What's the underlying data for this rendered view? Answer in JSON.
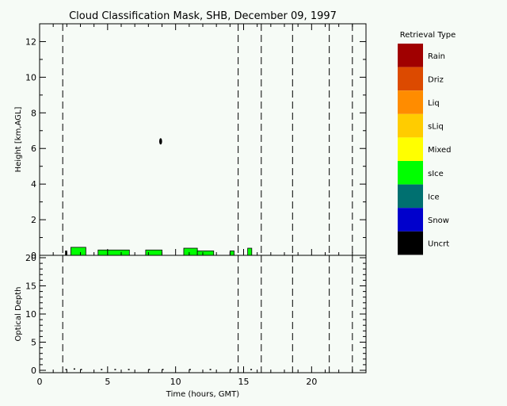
{
  "chart_data": [
    {
      "type": "heatmap",
      "title": "Cloud Classification Mask, SHB, December 09, 1997",
      "ylabel": "Height [km,AGL]",
      "xlim": [
        0,
        24
      ],
      "ylim": [
        0,
        13
      ],
      "xticks": [
        0,
        5,
        10,
        15,
        20
      ],
      "yticks": [
        0,
        2,
        4,
        6,
        8,
        10,
        12
      ],
      "grid": false,
      "dashed_time_markers": [
        1.7,
        14.6,
        16.3,
        18.6,
        21.3,
        23.0
      ],
      "legend": {
        "title": "Retrieval Type",
        "placement": "right",
        "items": [
          {
            "label": "Rain",
            "color": "#a00000"
          },
          {
            "label": "Driz",
            "color": "#dc4a00"
          },
          {
            "label": "Liq",
            "color": "#ff8c00"
          },
          {
            "label": "sLiq",
            "color": "#ffcc00"
          },
          {
            "label": "Mixed",
            "color": "#ffff00"
          },
          {
            "label": "sIce",
            "color": "#00ff00"
          },
          {
            "label": "Ice",
            "color": "#007070"
          },
          {
            "label": "Snow",
            "color": "#0000cc"
          },
          {
            "label": "Uncrt",
            "color": "#000000"
          }
        ]
      },
      "cloud_segments": [
        {
          "start": 1.9,
          "end": 2.0,
          "top": 0.25,
          "type": "Uncrt"
        },
        {
          "start": 2.3,
          "end": 3.4,
          "top": 0.45,
          "type": "sIce"
        },
        {
          "start": 4.3,
          "end": 6.6,
          "top": 0.3,
          "type": "sIce"
        },
        {
          "start": 7.8,
          "end": 9.0,
          "top": 0.3,
          "type": "sIce"
        },
        {
          "start": 10.6,
          "end": 11.6,
          "top": 0.4,
          "type": "sIce"
        },
        {
          "start": 11.6,
          "end": 12.8,
          "top": 0.25,
          "type": "sIce"
        },
        {
          "start": 14.0,
          "end": 14.3,
          "top": 0.25,
          "type": "sIce"
        },
        {
          "start": 15.3,
          "end": 15.6,
          "top": 0.4,
          "type": "sIce"
        }
      ],
      "uncertain_points": [
        {
          "time": 8.9,
          "height": 6.4
        }
      ]
    },
    {
      "type": "line",
      "ylabel": "Optical Depth",
      "xlabel": "Time (hours, GMT)",
      "xlim": [
        0,
        24
      ],
      "ylim": [
        0,
        20
      ],
      "xticks": [
        0,
        5,
        10,
        15,
        20
      ],
      "xtick_labels": [
        "0",
        "5",
        "10",
        "15",
        "20"
      ],
      "yticks": [
        0,
        5,
        10,
        15,
        20
      ],
      "ytick_labels": [
        "0",
        "5",
        "10",
        "15",
        "20"
      ],
      "series": [
        {
          "x": [
            1.9,
            2.5,
            3.0,
            4.5,
            5.5,
            6.5,
            8.0,
            9.0,
            11.0,
            12.5,
            14.0,
            15.5
          ],
          "values": [
            0.1,
            0.2,
            0.1,
            0.1,
            0.1,
            0.1,
            0.1,
            0.1,
            0.1,
            0.1,
            0.1,
            0.1
          ]
        }
      ],
      "grid": false
    }
  ]
}
